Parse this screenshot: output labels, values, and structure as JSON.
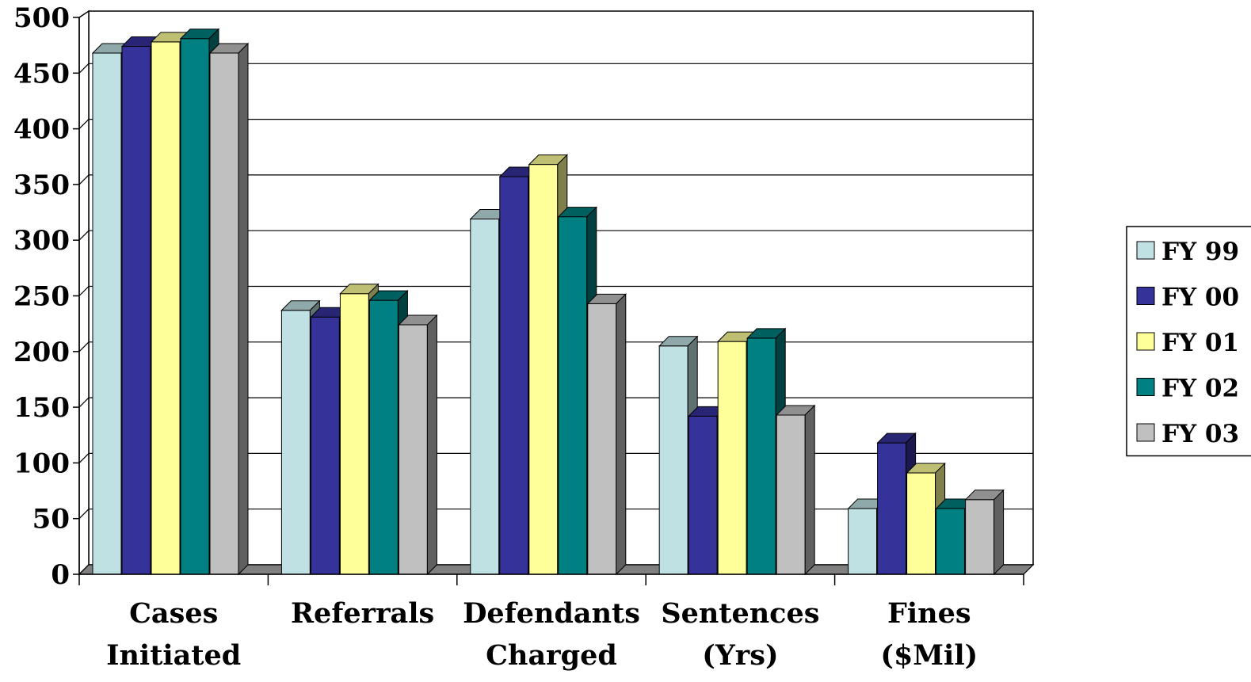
{
  "chart_data": {
    "type": "bar",
    "style": "3d-clustered-column",
    "title": "",
    "xlabel": "",
    "ylabel": "",
    "ylim": [
      0,
      500
    ],
    "yticks": [
      0,
      50,
      100,
      150,
      200,
      250,
      300,
      350,
      400,
      450,
      500
    ],
    "grid": true,
    "legend_position": "right",
    "categories": [
      [
        "Cases",
        "Initiated"
      ],
      [
        "Referrals"
      ],
      [
        "Defendants",
        "Charged"
      ],
      [
        "Sentences",
        "(Yrs)"
      ],
      [
        "Fines",
        "($Mil)"
      ]
    ],
    "series": [
      {
        "name": "FY 99",
        "color": "#BFE1E4",
        "values": [
          468,
          237,
          319,
          205,
          59
        ]
      },
      {
        "name": "FY 00",
        "color": "#35329A",
        "values": [
          474,
          231,
          357,
          142,
          118
        ]
      },
      {
        "name": "FY 01",
        "color": "#FFFF99",
        "values": [
          478,
          252,
          368,
          209,
          91
        ]
      },
      {
        "name": "FY 02",
        "color": "#008080",
        "values": [
          481,
          246,
          321,
          212,
          59
        ]
      },
      {
        "name": "FY 03",
        "color": "#C0C0C0",
        "values": [
          468,
          224,
          243,
          143,
          67
        ]
      }
    ]
  }
}
